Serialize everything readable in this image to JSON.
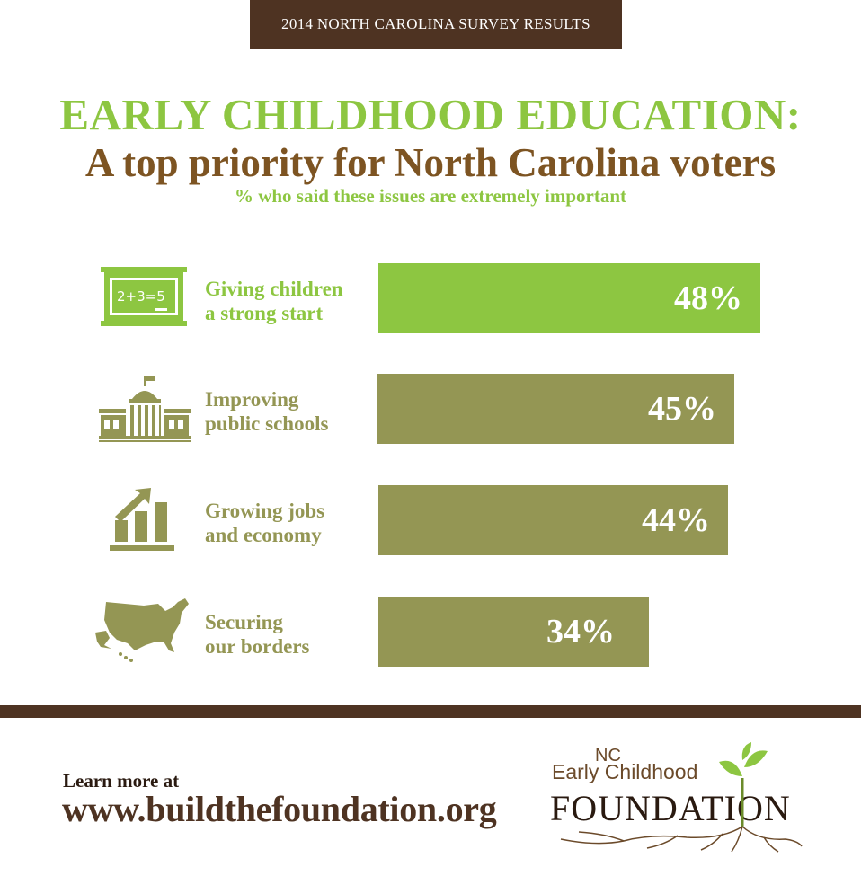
{
  "header": {
    "banner": "2014 NORTH CAROLINA SURVEY RESULTS",
    "title": "EARLY CHILDHOOD EDUCATION:",
    "subtitle": "A top priority for North Carolina voters",
    "caption": "% who said these issues are extremely important"
  },
  "chart_data": {
    "type": "bar",
    "orientation": "horizontal",
    "categories": [
      "Giving children a strong start",
      "Improving public schools",
      "Growing jobs and economy",
      "Securing our borders"
    ],
    "labels": [
      "Giving children\na strong start",
      "Improving\npublic schools",
      "Growing jobs\nand economy",
      "Securing\nour borders"
    ],
    "values": [
      48,
      45,
      44,
      34
    ],
    "value_labels": [
      "48%",
      "45%",
      "44%",
      "34%"
    ],
    "icons": [
      "chalkboard-icon",
      "capitol-building-icon",
      "growth-chart-icon",
      "usa-map-icon"
    ],
    "unit": "%",
    "colors": {
      "highlight": "#8dc641",
      "bar": "#949654",
      "label_highlight": "#8dc641",
      "label": "#949654"
    }
  },
  "footer": {
    "learn_more": "Learn more at",
    "url": "www.buildthefoundation.org",
    "logo": {
      "nc": "NC",
      "early_childhood": "Early Childhood",
      "foundation": "FOUNDATION"
    }
  },
  "colors": {
    "brown": "#4e3322",
    "title_brown": "#7d5422",
    "green": "#8dc641",
    "olive": "#949654"
  }
}
